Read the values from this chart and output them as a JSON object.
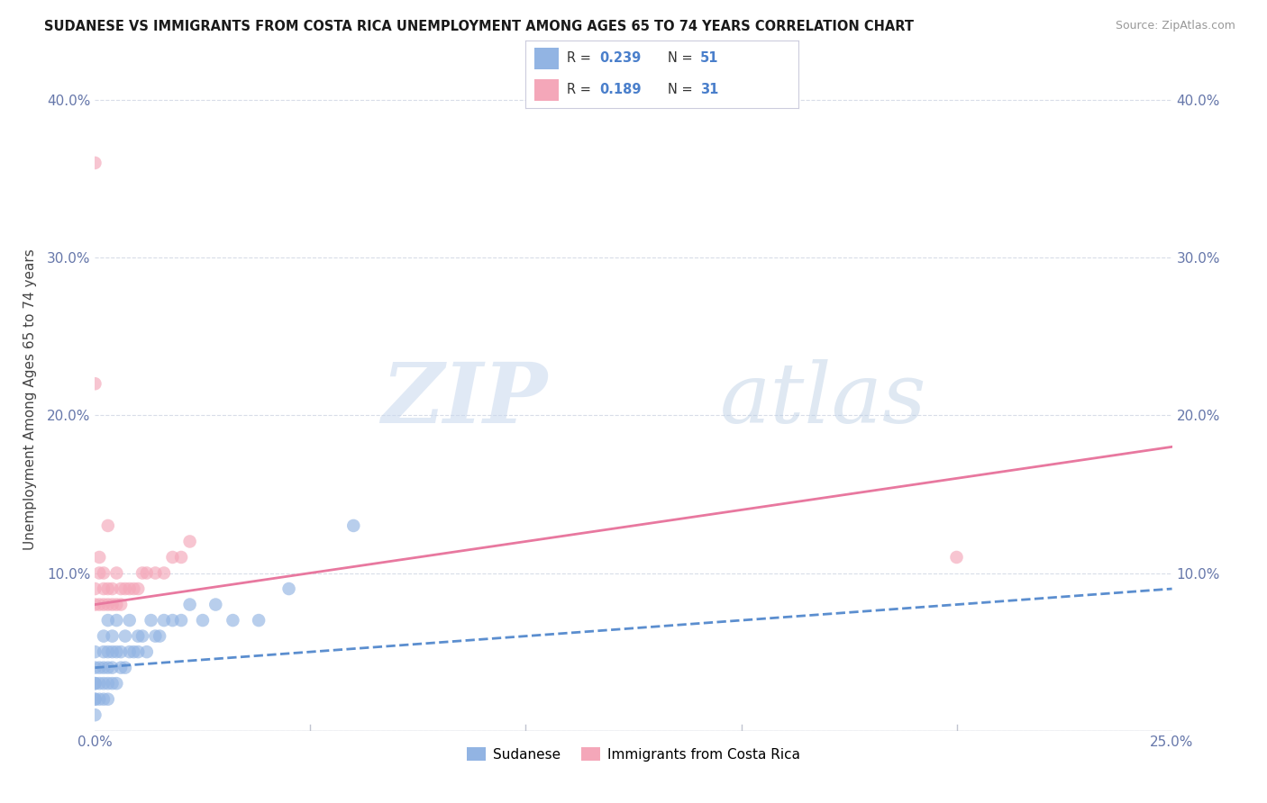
{
  "title": "SUDANESE VS IMMIGRANTS FROM COSTA RICA UNEMPLOYMENT AMONG AGES 65 TO 74 YEARS CORRELATION CHART",
  "source": "Source: ZipAtlas.com",
  "ylabel": "Unemployment Among Ages 65 to 74 years",
  "xlim": [
    0.0,
    0.25
  ],
  "ylim": [
    0.0,
    0.42
  ],
  "xticks": [
    0.0,
    0.05,
    0.1,
    0.15,
    0.2,
    0.25
  ],
  "yticks": [
    0.0,
    0.1,
    0.2,
    0.3,
    0.4
  ],
  "xtick_labels": [
    "0.0%",
    "",
    "",
    "",
    "",
    "25.0%"
  ],
  "ytick_labels": [
    "",
    "10.0%",
    "20.0%",
    "30.0%",
    "40.0%"
  ],
  "legend_label1": "Sudanese",
  "legend_label2": "Immigrants from Costa Rica",
  "R1": 0.239,
  "N1": 51,
  "R2": 0.189,
  "N2": 31,
  "color1": "#92b4e3",
  "color2": "#f4a7b9",
  "line1_color": "#5b8ecf",
  "line2_color": "#e8789f",
  "watermark_zip": "ZIP",
  "watermark_atlas": "atlas",
  "sudanese_x": [
    0.0,
    0.0,
    0.0,
    0.0,
    0.0,
    0.0,
    0.0,
    0.001,
    0.001,
    0.001,
    0.002,
    0.002,
    0.002,
    0.002,
    0.002,
    0.003,
    0.003,
    0.003,
    0.003,
    0.003,
    0.004,
    0.004,
    0.004,
    0.004,
    0.005,
    0.005,
    0.005,
    0.006,
    0.006,
    0.007,
    0.007,
    0.008,
    0.008,
    0.009,
    0.01,
    0.01,
    0.011,
    0.012,
    0.013,
    0.014,
    0.015,
    0.016,
    0.018,
    0.02,
    0.022,
    0.025,
    0.028,
    0.032,
    0.038,
    0.045,
    0.06
  ],
  "sudanese_y": [
    0.01,
    0.02,
    0.02,
    0.03,
    0.03,
    0.04,
    0.05,
    0.02,
    0.03,
    0.04,
    0.02,
    0.03,
    0.04,
    0.05,
    0.06,
    0.02,
    0.03,
    0.04,
    0.05,
    0.07,
    0.03,
    0.04,
    0.05,
    0.06,
    0.03,
    0.05,
    0.07,
    0.04,
    0.05,
    0.04,
    0.06,
    0.05,
    0.07,
    0.05,
    0.05,
    0.06,
    0.06,
    0.05,
    0.07,
    0.06,
    0.06,
    0.07,
    0.07,
    0.07,
    0.08,
    0.07,
    0.08,
    0.07,
    0.07,
    0.09,
    0.13
  ],
  "costarica_x": [
    0.0,
    0.0,
    0.0,
    0.0,
    0.001,
    0.001,
    0.001,
    0.002,
    0.002,
    0.002,
    0.003,
    0.003,
    0.003,
    0.004,
    0.004,
    0.005,
    0.005,
    0.006,
    0.006,
    0.007,
    0.008,
    0.009,
    0.01,
    0.011,
    0.012,
    0.014,
    0.016,
    0.018,
    0.02,
    0.022,
    0.2
  ],
  "costarica_y": [
    0.08,
    0.09,
    0.22,
    0.36,
    0.08,
    0.1,
    0.11,
    0.08,
    0.09,
    0.1,
    0.08,
    0.09,
    0.13,
    0.08,
    0.09,
    0.08,
    0.1,
    0.08,
    0.09,
    0.09,
    0.09,
    0.09,
    0.09,
    0.1,
    0.1,
    0.1,
    0.1,
    0.11,
    0.11,
    0.12,
    0.11
  ],
  "line1_x": [
    0.0,
    0.25
  ],
  "line1_y": [
    0.04,
    0.09
  ],
  "line2_x": [
    0.0,
    0.25
  ],
  "line2_y": [
    0.08,
    0.18
  ]
}
